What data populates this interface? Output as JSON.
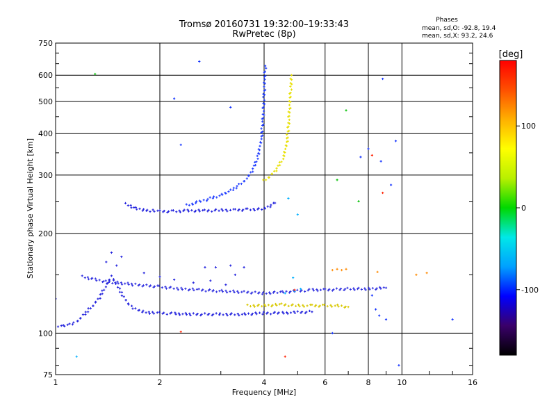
{
  "chart_data": {
    "type": "scatter",
    "title": "Tromsø 20160731 19:32:00–19:33:43",
    "subtitle": "RwPretec (8p)",
    "xlabel": "Frequency [MHz]",
    "ylabel": "Stationary phase Virtual Height [km]",
    "x_scale": "log2",
    "y_scale": "log",
    "xlim": [
      1,
      16
    ],
    "ylim": [
      75,
      750
    ],
    "x_ticks": [
      1,
      2,
      4,
      6,
      8,
      10,
      16
    ],
    "y_ticks": [
      75,
      100,
      200,
      300,
      400,
      500,
      600,
      750
    ],
    "grid": true,
    "stats": {
      "heading": "Phases",
      "o_line": "mean, sd,O: -92.8, 19.4",
      "x_line": "mean, sd,X: 93.2, 24.6"
    },
    "colorbar": {
      "label": "[deg]",
      "range": [
        -180,
        180
      ],
      "ticks": [
        100,
        0,
        -100
      ],
      "palette": [
        "#000000",
        "#3a006a",
        "#0000ff",
        "#00a0ff",
        "#00e8e8",
        "#00d800",
        "#b8f000",
        "#ffff00",
        "#ffb000",
        "#ff5000",
        "#ff0000"
      ]
    },
    "series": [
      {
        "trace_type": "line",
        "color": "#2222dd",
        "points": [
          [
            1.0,
            105
          ],
          [
            1.05,
            105
          ],
          [
            1.1,
            106
          ],
          [
            1.15,
            108
          ],
          [
            1.2,
            113
          ],
          [
            1.25,
            118
          ],
          [
            1.3,
            123
          ],
          [
            1.35,
            130
          ],
          [
            1.4,
            140
          ],
          [
            1.45,
            148
          ],
          [
            1.5,
            140
          ],
          [
            1.55,
            132
          ],
          [
            1.6,
            125
          ],
          [
            1.65,
            120
          ],
          [
            1.7,
            118
          ],
          [
            1.8,
            116
          ],
          [
            1.9,
            115
          ],
          [
            2.0,
            115
          ],
          [
            2.2,
            114.5
          ],
          [
            2.5,
            114
          ],
          [
            3.0,
            114
          ],
          [
            3.5,
            114
          ],
          [
            4.0,
            115
          ],
          [
            4.5,
            115
          ],
          [
            5.0,
            115.5
          ],
          [
            5.5,
            116
          ]
        ]
      },
      {
        "trace_type": "line",
        "color": "#3030e0",
        "points": [
          [
            1.2,
            148
          ],
          [
            1.3,
            145
          ],
          [
            1.4,
            143
          ],
          [
            1.5,
            142
          ],
          [
            1.7,
            140
          ],
          [
            2.0,
            138
          ],
          [
            2.3,
            136
          ],
          [
            2.6,
            135
          ],
          [
            3.0,
            134
          ],
          [
            3.5,
            133
          ],
          [
            4.0,
            132
          ],
          [
            4.5,
            133
          ],
          [
            5.0,
            134
          ],
          [
            5.5,
            135
          ],
          [
            6.0,
            135
          ],
          [
            7.0,
            136
          ],
          [
            8.0,
            136
          ],
          [
            9.0,
            137
          ]
        ]
      },
      {
        "trace_type": "line",
        "color": "#2020dd",
        "points": [
          [
            1.6,
            245
          ],
          [
            1.7,
            238
          ],
          [
            1.8,
            235
          ],
          [
            1.9,
            234
          ],
          [
            2.0,
            233
          ],
          [
            2.2,
            233
          ],
          [
            2.4,
            234
          ],
          [
            2.7,
            234
          ],
          [
            3.0,
            235
          ],
          [
            3.3,
            235
          ],
          [
            3.6,
            236
          ],
          [
            4.0,
            237
          ],
          [
            4.3,
            247
          ]
        ]
      },
      {
        "trace_type": "line",
        "color": "#1f3cff",
        "points": [
          [
            2.4,
            243
          ],
          [
            2.6,
            249
          ],
          [
            2.8,
            255
          ],
          [
            3.0,
            261
          ],
          [
            3.2,
            269
          ],
          [
            3.4,
            280
          ],
          [
            3.6,
            296
          ],
          [
            3.75,
            318
          ],
          [
            3.85,
            345
          ],
          [
            3.93,
            390
          ],
          [
            3.97,
            440
          ],
          [
            4.0,
            520
          ],
          [
            4.02,
            590
          ],
          [
            4.03,
            640
          ]
        ]
      },
      {
        "trace_type": "line",
        "color": "#e8e000",
        "points": [
          [
            4.0,
            288
          ],
          [
            4.2,
            300
          ],
          [
            4.4,
            318
          ],
          [
            4.55,
            340
          ],
          [
            4.65,
            375
          ],
          [
            4.7,
            415
          ],
          [
            4.73,
            460
          ],
          [
            4.76,
            510
          ],
          [
            4.78,
            560
          ],
          [
            4.8,
            600
          ]
        ]
      },
      {
        "trace_type": "line",
        "color": "#d8c800",
        "points": [
          [
            3.6,
            121
          ],
          [
            4.0,
            121
          ],
          [
            4.5,
            122
          ],
          [
            5.0,
            121
          ],
          [
            5.5,
            121
          ],
          [
            6.0,
            121
          ],
          [
            6.5,
            121
          ],
          [
            7.0,
            120
          ]
        ]
      },
      {
        "trace_type": "scatter",
        "color": "#ff8a00",
        "points": [
          [
            6.3,
            155
          ],
          [
            6.5,
            156
          ],
          [
            6.7,
            155
          ],
          [
            6.9,
            156
          ],
          [
            8.5,
            153
          ],
          [
            11.0,
            150
          ],
          [
            11.8,
            152
          ]
        ]
      },
      {
        "trace_type": "scatter",
        "color": "#2020dd",
        "points": [
          [
            1.8,
            152
          ],
          [
            2.0,
            148
          ],
          [
            2.2,
            145
          ],
          [
            2.5,
            142
          ],
          [
            2.8,
            144
          ],
          [
            3.1,
            140
          ],
          [
            3.3,
            150
          ],
          [
            3.5,
            158
          ],
          [
            2.7,
            158
          ],
          [
            2.9,
            158
          ],
          [
            3.2,
            160
          ],
          [
            1.0,
            127
          ],
          [
            1.5,
            160
          ],
          [
            1.55,
            170
          ],
          [
            1.45,
            175
          ],
          [
            1.4,
            164
          ]
        ]
      },
      {
        "trace_type": "scatter",
        "color": "#1030ff",
        "points": [
          [
            2.6,
            660
          ],
          [
            2.2,
            510
          ],
          [
            2.3,
            370
          ],
          [
            3.2,
            480
          ],
          [
            7.6,
            340
          ],
          [
            8.0,
            360
          ],
          [
            8.7,
            330
          ],
          [
            9.3,
            280
          ],
          [
            9.6,
            380
          ],
          [
            6.3,
            100
          ],
          [
            8.2,
            130
          ],
          [
            8.4,
            118
          ],
          [
            8.6,
            113
          ],
          [
            9.0,
            110
          ],
          [
            9.8,
            80
          ],
          [
            14.0,
            110
          ],
          [
            8.8,
            585
          ]
        ]
      },
      {
        "trace_type": "scatter",
        "color": "#00b0ff",
        "points": [
          [
            4.6,
            132
          ],
          [
            4.9,
            134
          ],
          [
            5.1,
            136
          ],
          [
            4.85,
            147
          ],
          [
            5.0,
            228
          ],
          [
            4.7,
            255
          ],
          [
            1.15,
            85
          ]
        ]
      },
      {
        "trace_type": "scatter",
        "color": "#00c000",
        "points": [
          [
            6.9,
            470
          ],
          [
            6.5,
            290
          ],
          [
            7.5,
            250
          ],
          [
            1.3,
            605
          ]
        ]
      },
      {
        "trace_type": "scatter",
        "color": "#ff2000",
        "points": [
          [
            8.2,
            344
          ],
          [
            8.8,
            265
          ],
          [
            4.9,
            135
          ],
          [
            4.6,
            85
          ],
          [
            2.3,
            101
          ]
        ]
      }
    ]
  }
}
